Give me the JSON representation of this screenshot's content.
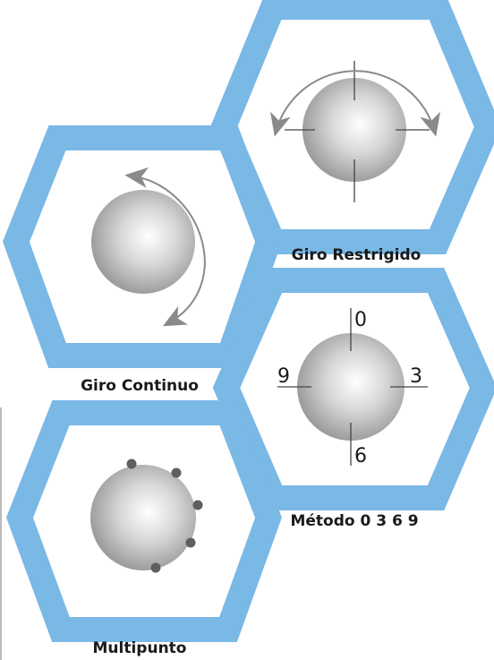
{
  "colors": {
    "hex_frame": "#7ab8e6",
    "arrow": "#8a8a8a",
    "marker": "#5f5f5f",
    "tick": "#444444"
  },
  "icons": {
    "sphere": "sphere-icon",
    "arrow": "curved-arrow-icon",
    "marker": "dot-marker-icon"
  },
  "panels": [
    {
      "id": "giro-restrigido",
      "label": "Giro Restrigido"
    },
    {
      "id": "giro-continuo",
      "label": "Giro Continuo"
    },
    {
      "id": "metodo-0369",
      "label": "Método 0 3 6 9"
    },
    {
      "id": "multipunto",
      "label": "Multipunto"
    }
  ],
  "dial_numbers": {
    "top": "0",
    "right": "3",
    "bottom": "6",
    "left": "9"
  }
}
